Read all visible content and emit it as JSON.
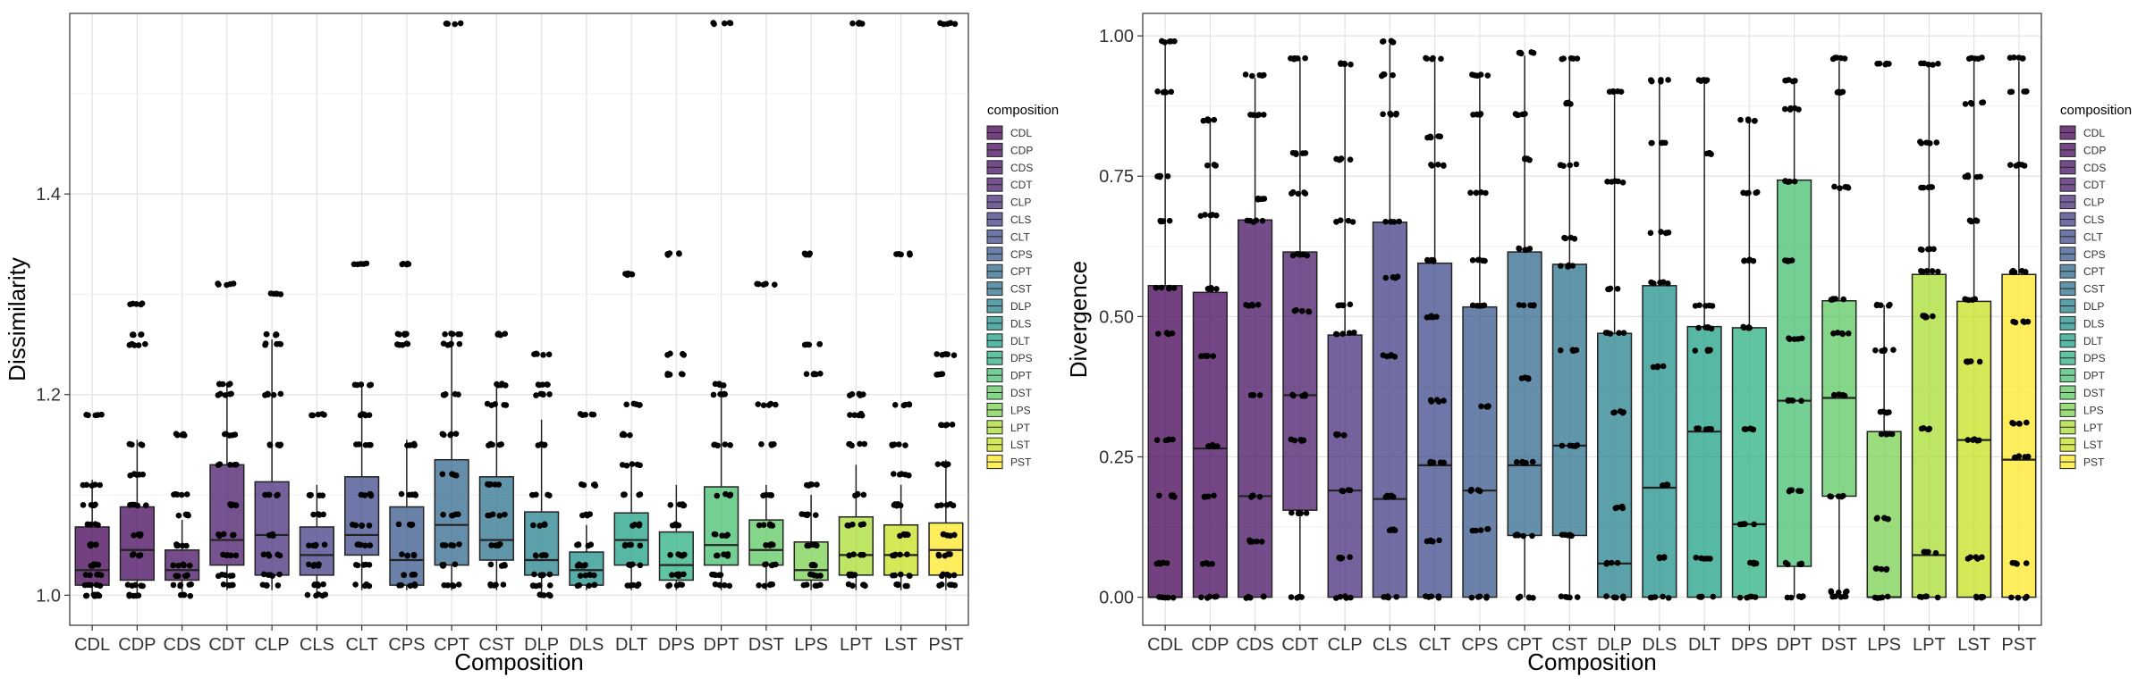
{
  "chart_data": [
    {
      "type": "boxplot",
      "xlabel": "Composition",
      "ylabel": "Dissimilarity",
      "ylim": [
        0.97,
        1.58
      ],
      "yticks": [
        1.0,
        1.2,
        1.4
      ],
      "ytick_labels": [
        "1.0",
        "1.2",
        "1.4"
      ],
      "grid": true,
      "legend_title": "composition",
      "legend_placement": "right",
      "categories": [
        "CDL",
        "CDP",
        "CDS",
        "CDT",
        "CLP",
        "CLS",
        "CLT",
        "CPS",
        "CPT",
        "CST",
        "DLP",
        "DLS",
        "DLT",
        "DPS",
        "DPT",
        "DST",
        "LPS",
        "LPT",
        "LST",
        "PST"
      ],
      "boxes": [
        {
          "min": 1.0,
          "q1": 1.01,
          "median": 1.025,
          "q3": 1.068,
          "max": 1.115
        },
        {
          "min": 1.0,
          "q1": 1.015,
          "median": 1.045,
          "q3": 1.088,
          "max": 1.155
        },
        {
          "min": 1.0,
          "q1": 1.015,
          "median": 1.025,
          "q3": 1.045,
          "max": 1.075
        },
        {
          "min": 1.005,
          "q1": 1.03,
          "median": 1.055,
          "q3": 1.13,
          "max": 1.21
        },
        {
          "min": 1.005,
          "q1": 1.02,
          "median": 1.06,
          "q3": 1.113,
          "max": 1.255
        },
        {
          "min": 1.0,
          "q1": 1.02,
          "median": 1.04,
          "q3": 1.068,
          "max": 1.11
        },
        {
          "min": 1.005,
          "q1": 1.04,
          "median": 1.06,
          "q3": 1.118,
          "max": 1.21
        },
        {
          "min": 1.005,
          "q1": 1.01,
          "median": 1.035,
          "q3": 1.088,
          "max": 1.155
        },
        {
          "min": 1.005,
          "q1": 1.03,
          "median": 1.07,
          "q3": 1.135,
          "max": 1.26
        },
        {
          "min": 1.005,
          "q1": 1.035,
          "median": 1.055,
          "q3": 1.118,
          "max": 1.21
        },
        {
          "min": 1.0,
          "q1": 1.02,
          "median": 1.035,
          "q3": 1.083,
          "max": 1.175
        },
        {
          "min": 1.005,
          "q1": 1.01,
          "median": 1.025,
          "q3": 1.043,
          "max": 1.07
        },
        {
          "min": 1.005,
          "q1": 1.03,
          "median": 1.055,
          "q3": 1.082,
          "max": 1.13
        },
        {
          "min": 1.005,
          "q1": 1.015,
          "median": 1.03,
          "q3": 1.063,
          "max": 1.11
        },
        {
          "min": 1.005,
          "q1": 1.03,
          "median": 1.05,
          "q3": 1.108,
          "max": 1.21
        },
        {
          "min": 1.005,
          "q1": 1.03,
          "median": 1.045,
          "q3": 1.075,
          "max": 1.11
        },
        {
          "min": 1.005,
          "q1": 1.015,
          "median": 1.025,
          "q3": 1.053,
          "max": 1.1
        },
        {
          "min": 1.005,
          "q1": 1.02,
          "median": 1.04,
          "q3": 1.078,
          "max": 1.13
        },
        {
          "min": 1.005,
          "q1": 1.02,
          "median": 1.04,
          "q3": 1.07,
          "max": 1.11
        },
        {
          "min": 1.005,
          "q1": 1.02,
          "median": 1.045,
          "q3": 1.072,
          "max": 1.135
        }
      ],
      "points": [
        [
          1.0,
          1.0,
          1.01,
          1.02,
          1.03,
          1.05,
          1.07,
          1.09,
          1.11,
          1.18
        ],
        [
          1.0,
          1.01,
          1.04,
          1.06,
          1.09,
          1.12,
          1.15,
          1.25,
          1.26,
          1.29
        ],
        [
          1.0,
          1.01,
          1.02,
          1.03,
          1.05,
          1.08,
          1.1,
          1.16
        ],
        [
          1.01,
          1.02,
          1.04,
          1.06,
          1.09,
          1.13,
          1.16,
          1.2,
          1.21,
          1.31
        ],
        [
          1.01,
          1.02,
          1.04,
          1.06,
          1.1,
          1.15,
          1.2,
          1.25,
          1.26,
          1.3
        ],
        [
          1.0,
          1.01,
          1.03,
          1.05,
          1.08,
          1.1,
          1.18
        ],
        [
          1.01,
          1.03,
          1.05,
          1.07,
          1.1,
          1.15,
          1.18,
          1.21,
          1.33
        ],
        [
          1.01,
          1.02,
          1.04,
          1.07,
          1.1,
          1.15,
          1.25,
          1.26,
          1.33
        ],
        [
          1.01,
          1.03,
          1.05,
          1.08,
          1.12,
          1.16,
          1.2,
          1.25,
          1.26,
          1.57
        ],
        [
          1.01,
          1.03,
          1.05,
          1.08,
          1.11,
          1.15,
          1.19,
          1.21,
          1.26
        ],
        [
          1.0,
          1.01,
          1.02,
          1.04,
          1.07,
          1.1,
          1.15,
          1.2,
          1.21,
          1.24
        ],
        [
          1.01,
          1.02,
          1.03,
          1.05,
          1.08,
          1.11,
          1.18
        ],
        [
          1.01,
          1.03,
          1.05,
          1.07,
          1.1,
          1.13,
          1.16,
          1.19,
          1.32
        ],
        [
          1.01,
          1.02,
          1.04,
          1.07,
          1.09,
          1.22,
          1.24,
          1.34
        ],
        [
          1.01,
          1.02,
          1.04,
          1.06,
          1.1,
          1.15,
          1.2,
          1.21,
          1.57
        ],
        [
          1.01,
          1.03,
          1.05,
          1.07,
          1.1,
          1.15,
          1.19,
          1.31
        ],
        [
          1.01,
          1.02,
          1.03,
          1.05,
          1.08,
          1.11,
          1.22,
          1.25,
          1.34
        ],
        [
          1.01,
          1.02,
          1.04,
          1.07,
          1.1,
          1.15,
          1.18,
          1.2,
          1.57
        ],
        [
          1.01,
          1.02,
          1.04,
          1.06,
          1.09,
          1.12,
          1.15,
          1.19,
          1.34
        ],
        [
          1.01,
          1.02,
          1.04,
          1.06,
          1.09,
          1.13,
          1.17,
          1.22,
          1.24,
          1.57
        ]
      ]
    },
    {
      "type": "boxplot",
      "xlabel": "Composition",
      "ylabel": "Divergence",
      "ylim": [
        -0.05,
        1.04
      ],
      "yticks": [
        0.0,
        0.25,
        0.5,
        0.75,
        1.0
      ],
      "ytick_labels": [
        "0.00",
        "0.25",
        "0.50",
        "0.75",
        "1.00"
      ],
      "grid": true,
      "legend_title": "composition",
      "legend_placement": "right",
      "categories": [
        "CDL",
        "CDP",
        "CDS",
        "CDT",
        "CLP",
        "CLS",
        "CLT",
        "CPS",
        "CPT",
        "CST",
        "DLP",
        "DLS",
        "DLT",
        "DPS",
        "DPT",
        "DST",
        "LPS",
        "LPT",
        "LST",
        "PST"
      ],
      "boxes": [
        {
          "min": 0.0,
          "q1": 0.0,
          "median": 0.0,
          "q3": 0.555,
          "max": 0.985
        },
        {
          "min": 0.0,
          "q1": 0.0,
          "median": 0.265,
          "q3": 0.543,
          "max": 0.85
        },
        {
          "min": 0.0,
          "q1": 0.0,
          "median": 0.18,
          "q3": 0.672,
          "max": 0.925
        },
        {
          "min": 0.0,
          "q1": 0.155,
          "median": 0.36,
          "q3": 0.615,
          "max": 0.96
        },
        {
          "min": 0.0,
          "q1": 0.0,
          "median": 0.19,
          "q3": 0.467,
          "max": 0.95
        },
        {
          "min": 0.0,
          "q1": 0.0,
          "median": 0.175,
          "q3": 0.668,
          "max": 0.985
        },
        {
          "min": 0.0,
          "q1": 0.0,
          "median": 0.235,
          "q3": 0.595,
          "max": 0.96
        },
        {
          "min": 0.0,
          "q1": 0.0,
          "median": 0.19,
          "q3": 0.517,
          "max": 0.93
        },
        {
          "min": 0.0,
          "q1": 0.11,
          "median": 0.235,
          "q3": 0.615,
          "max": 0.965
        },
        {
          "min": 0.0,
          "q1": 0.11,
          "median": 0.27,
          "q3": 0.593,
          "max": 0.96
        },
        {
          "min": 0.0,
          "q1": 0.0,
          "median": 0.06,
          "q3": 0.47,
          "max": 0.9
        },
        {
          "min": 0.0,
          "q1": 0.0,
          "median": 0.195,
          "q3": 0.555,
          "max": 0.92
        },
        {
          "min": 0.0,
          "q1": 0.0,
          "median": 0.295,
          "q3": 0.482,
          "max": 0.92
        },
        {
          "min": 0.0,
          "q1": 0.0,
          "median": 0.13,
          "q3": 0.48,
          "max": 0.85
        },
        {
          "min": 0.0,
          "q1": 0.055,
          "median": 0.35,
          "q3": 0.743,
          "max": 0.92
        },
        {
          "min": 0.0,
          "q1": 0.18,
          "median": 0.355,
          "q3": 0.528,
          "max": 0.955
        },
        {
          "min": 0.0,
          "q1": 0.0,
          "median": 0.0,
          "q3": 0.295,
          "max": 0.52
        },
        {
          "min": 0.0,
          "q1": 0.0,
          "median": 0.075,
          "q3": 0.575,
          "max": 0.95
        },
        {
          "min": 0.0,
          "q1": 0.0,
          "median": 0.28,
          "q3": 0.527,
          "max": 0.955
        },
        {
          "min": 0.0,
          "q1": 0.0,
          "median": 0.245,
          "q3": 0.575,
          "max": 0.955
        }
      ],
      "points": [
        [
          0.0,
          0.06,
          0.18,
          0.28,
          0.47,
          0.55,
          0.67,
          0.75,
          0.9,
          0.99
        ],
        [
          0.0,
          0.06,
          0.18,
          0.27,
          0.43,
          0.55,
          0.68,
          0.77,
          0.85
        ],
        [
          0.0,
          0.1,
          0.18,
          0.36,
          0.52,
          0.67,
          0.71,
          0.86,
          0.93
        ],
        [
          0.0,
          0.15,
          0.28,
          0.36,
          0.51,
          0.61,
          0.72,
          0.79,
          0.96
        ],
        [
          0.0,
          0.07,
          0.19,
          0.29,
          0.47,
          0.52,
          0.67,
          0.78,
          0.95
        ],
        [
          0.0,
          0.12,
          0.18,
          0.43,
          0.57,
          0.67,
          0.86,
          0.93,
          0.99
        ],
        [
          0.0,
          0.1,
          0.24,
          0.35,
          0.5,
          0.6,
          0.77,
          0.82,
          0.96
        ],
        [
          0.0,
          0.12,
          0.19,
          0.34,
          0.52,
          0.6,
          0.72,
          0.86,
          0.93
        ],
        [
          0.0,
          0.11,
          0.24,
          0.39,
          0.52,
          0.62,
          0.78,
          0.86,
          0.97
        ],
        [
          0.0,
          0.11,
          0.27,
          0.44,
          0.59,
          0.64,
          0.77,
          0.88,
          0.96
        ],
        [
          0.0,
          0.06,
          0.16,
          0.33,
          0.47,
          0.55,
          0.74,
          0.9
        ],
        [
          0.0,
          0.07,
          0.2,
          0.41,
          0.56,
          0.65,
          0.81,
          0.92
        ],
        [
          0.0,
          0.07,
          0.3,
          0.44,
          0.48,
          0.52,
          0.79,
          0.92
        ],
        [
          0.0,
          0.06,
          0.13,
          0.3,
          0.48,
          0.6,
          0.72,
          0.85
        ],
        [
          0.0,
          0.06,
          0.19,
          0.35,
          0.46,
          0.6,
          0.74,
          0.87,
          0.92
        ],
        [
          0.0,
          0.01,
          0.18,
          0.36,
          0.47,
          0.53,
          0.73,
          0.9,
          0.96
        ],
        [
          0.0,
          0.05,
          0.14,
          0.29,
          0.33,
          0.44,
          0.52,
          0.95
        ],
        [
          0.0,
          0.08,
          0.3,
          0.5,
          0.58,
          0.62,
          0.73,
          0.81,
          0.95
        ],
        [
          0.0,
          0.07,
          0.28,
          0.42,
          0.53,
          0.67,
          0.75,
          0.88,
          0.96
        ],
        [
          0.0,
          0.06,
          0.25,
          0.31,
          0.49,
          0.58,
          0.77,
          0.9,
          0.96
        ]
      ]
    }
  ],
  "legend": {
    "title": "composition",
    "items": [
      "CDL",
      "CDP",
      "CDS",
      "CDT",
      "CLP",
      "CLS",
      "CLT",
      "CPS",
      "CPT",
      "CST",
      "DLP",
      "DLS",
      "DLT",
      "DPS",
      "DPT",
      "DST",
      "LPS",
      "LPT",
      "LST",
      "PST"
    ],
    "colors": [
      "#440154",
      "#46085C",
      "#471063",
      "#48186A",
      "#472D7B",
      "#433E85",
      "#3E4989",
      "#38588C",
      "#31688E",
      "#2C728E",
      "#26828E",
      "#21918C",
      "#1FA088",
      "#2AB07F",
      "#44BF70",
      "#5DC863",
      "#7AD151",
      "#AADC32",
      "#C7E020",
      "#FDE725"
    ]
  },
  "box_fill_opacity": 0.75,
  "point_color": "#000000"
}
